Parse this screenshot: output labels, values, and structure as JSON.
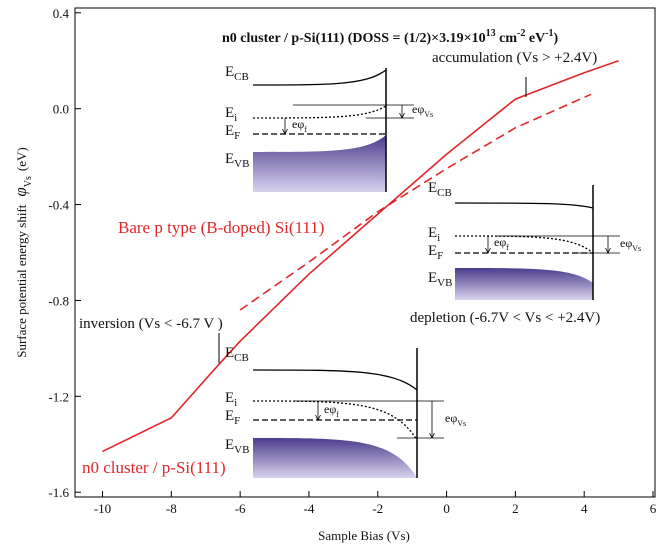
{
  "chart_data": {
    "type": "line",
    "title": [
      "n0 cluster / p-Si(111) (DOSS = (1/2)×3.19×10",
      "13",
      " cm",
      "-2",
      " eV",
      "-1",
      ")"
    ],
    "x_label": "Sample Bias (Vs)",
    "y_label": [
      "Surface potential energy shift",
      "φ",
      "Vs",
      "(eV)"
    ],
    "xlim": [
      -10.8,
      6
    ],
    "ylim": [
      -1.62,
      0.42
    ],
    "xticks": [
      -10,
      -8,
      -6,
      -4,
      -2,
      0,
      2,
      4,
      6
    ],
    "yticks": [
      0.4,
      {
        "value": 0,
        "label": "0.0"
      },
      -0.4,
      -0.8,
      -1.2,
      -1.6
    ],
    "series": [
      {
        "name": "n0 cluster / p-Si(111)",
        "color": "#e0262a",
        "dash": false,
        "x": [
          -10,
          -8,
          -6.7,
          -6,
          -4,
          -2,
          0,
          2,
          4,
          5
        ],
        "values": [
          -1.43,
          -1.29,
          -1.08,
          -0.97,
          -0.69,
          -0.44,
          -0.19,
          0.04,
          0.15,
          0.2
        ]
      },
      {
        "name": "Bare p type (B-doped) Si(111)",
        "color": "#e0262a",
        "dash": true,
        "x": [
          -6,
          -4,
          -2,
          0,
          2,
          4.2
        ],
        "values": [
          -0.84,
          -0.64,
          -0.43,
          -0.25,
          -0.08,
          0.06
        ]
      }
    ],
    "annotations": [
      "accumulation (Vs > +2.4V)",
      "inversion (Vs < -6.7 V )",
      "depletion (-6.7V < Vs < +2.4V)"
    ],
    "insets": [
      {
        "labels": [
          [
            "E",
            "CB"
          ],
          [
            "E",
            "i"
          ],
          [
            "E",
            "F"
          ],
          [
            "E",
            "VB"
          ],
          [
            "eφ",
            "f"
          ],
          [
            "eφ",
            "Vs"
          ]
        ]
      },
      {
        "labels": [
          [
            "E",
            "CB"
          ],
          [
            "E",
            "i"
          ],
          [
            "E",
            "F"
          ],
          [
            "E",
            "VB"
          ],
          [
            "eφ",
            "f"
          ],
          [
            "eφ",
            "Vs"
          ]
        ]
      },
      {
        "labels": [
          [
            "E",
            "CB"
          ],
          [
            "E",
            "i"
          ],
          [
            "E",
            "F"
          ],
          [
            "E",
            "VB"
          ],
          [
            "eφ",
            "f"
          ],
          [
            "eφ",
            "Vs"
          ]
        ]
      }
    ]
  }
}
